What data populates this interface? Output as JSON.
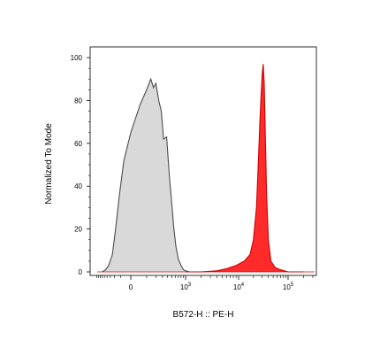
{
  "chart_data": {
    "type": "area",
    "xlabel": "B572-H :: PE-H",
    "ylabel": "Normalized To Mode",
    "x_scale": "biexponential",
    "ylim": [
      0,
      105
    ],
    "grid": false,
    "legend": "none",
    "y_ticks": [
      "0",
      "20",
      "40",
      "60",
      "80",
      "100"
    ],
    "x_ticks": [
      {
        "base": "0",
        "exp": ""
      },
      {
        "base": "10",
        "exp": "3"
      },
      {
        "base": "10",
        "exp": "4"
      },
      {
        "base": "10",
        "exp": "5"
      }
    ],
    "series": [
      {
        "fill": "#d9d9d9",
        "stroke": "#4d4d4d",
        "x": [
          -600,
          -450,
          -350,
          -250,
          -180,
          -120,
          -60,
          0,
          50,
          100,
          140,
          170,
          200,
          240,
          280,
          320,
          380,
          440,
          500,
          560,
          620,
          700,
          800,
          900,
          1000,
          1200,
          1500
        ],
        "y": [
          0,
          1,
          3,
          8,
          20,
          35,
          52,
          65,
          78,
          85,
          90,
          86,
          88,
          80,
          75,
          62,
          63,
          45,
          32,
          20,
          12,
          6,
          3,
          1,
          0.5,
          0,
          0
        ]
      },
      {
        "fill": "#ff2a2a",
        "stroke": "#cc0000",
        "x": [
          1000,
          2000,
          4000,
          6000,
          9000,
          13000,
          17000,
          20000,
          23000,
          25000,
          27000,
          28500,
          30000,
          31500,
          33000,
          35000,
          37000,
          40000,
          45000,
          55000,
          70000,
          100000,
          200000
        ],
        "y": [
          0,
          0,
          0.5,
          1.5,
          3,
          5,
          8,
          15,
          30,
          50,
          70,
          82,
          92,
          97,
          88,
          60,
          35,
          15,
          5,
          2,
          1,
          0,
          0
        ]
      }
    ]
  }
}
